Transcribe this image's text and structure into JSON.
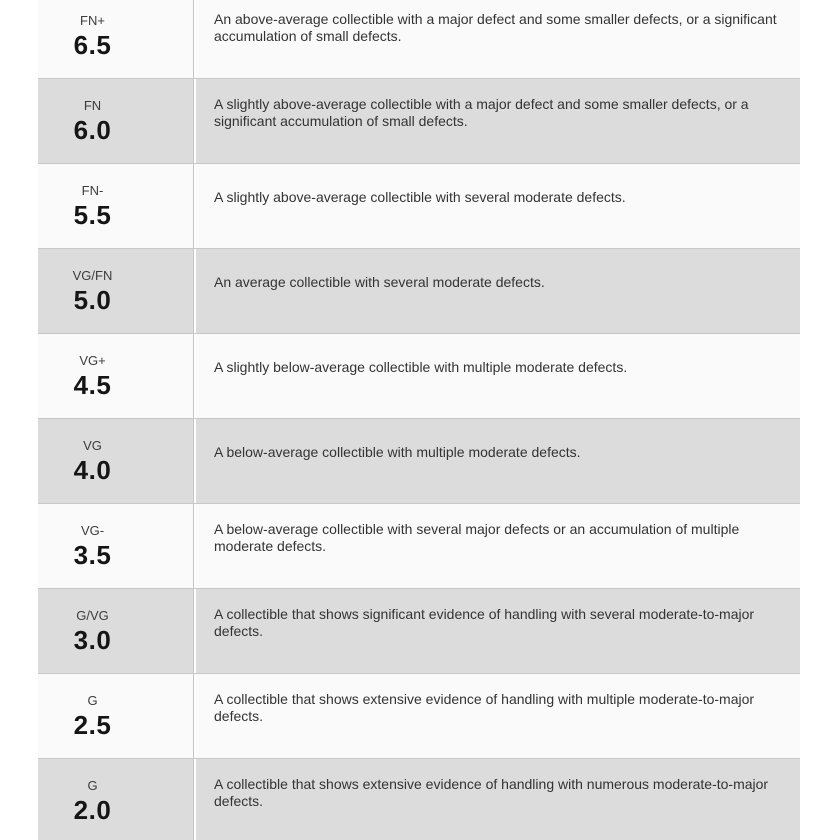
{
  "table": {
    "colors": {
      "row_bg": "#fafafa",
      "row_alt_bg": "#dcdcdc",
      "border": "#c8c8c8",
      "divider": "#c6c6c6"
    },
    "rows": [
      {
        "label": "FN+",
        "grade": "6.5",
        "description": "An above-average collectible with a major defect and some smaller defects, or a significant accumulation of small defects."
      },
      {
        "label": "FN",
        "grade": "6.0",
        "description": "A slightly above-average collectible with a major defect and some smaller defects, or a significant accumulation of small defects."
      },
      {
        "label": "FN-",
        "grade": "5.5",
        "description": "A slightly above-average collectible with several moderate defects."
      },
      {
        "label": "VG/FN",
        "grade": "5.0",
        "description": "An average collectible with several moderate defects."
      },
      {
        "label": "VG+",
        "grade": "4.5",
        "description": "A slightly below-average collectible with multiple moderate defects."
      },
      {
        "label": "VG",
        "grade": "4.0",
        "description": "A below-average collectible with multiple moderate defects."
      },
      {
        "label": "VG-",
        "grade": "3.5",
        "description": "A below-average collectible with several major defects or an accumulation of multiple moderate defects."
      },
      {
        "label": "G/VG",
        "grade": "3.0",
        "description": "A collectible that shows significant evidence of handling with several moderate-to-major defects."
      },
      {
        "label": "G",
        "grade": "2.5",
        "description": "A collectible that shows extensive evidence of handling with multiple moderate-to-major defects."
      },
      {
        "label": "G",
        "grade": "2.0",
        "description": "A collectible that shows extensive evidence of handling with numerous moderate-to-major defects."
      }
    ]
  }
}
